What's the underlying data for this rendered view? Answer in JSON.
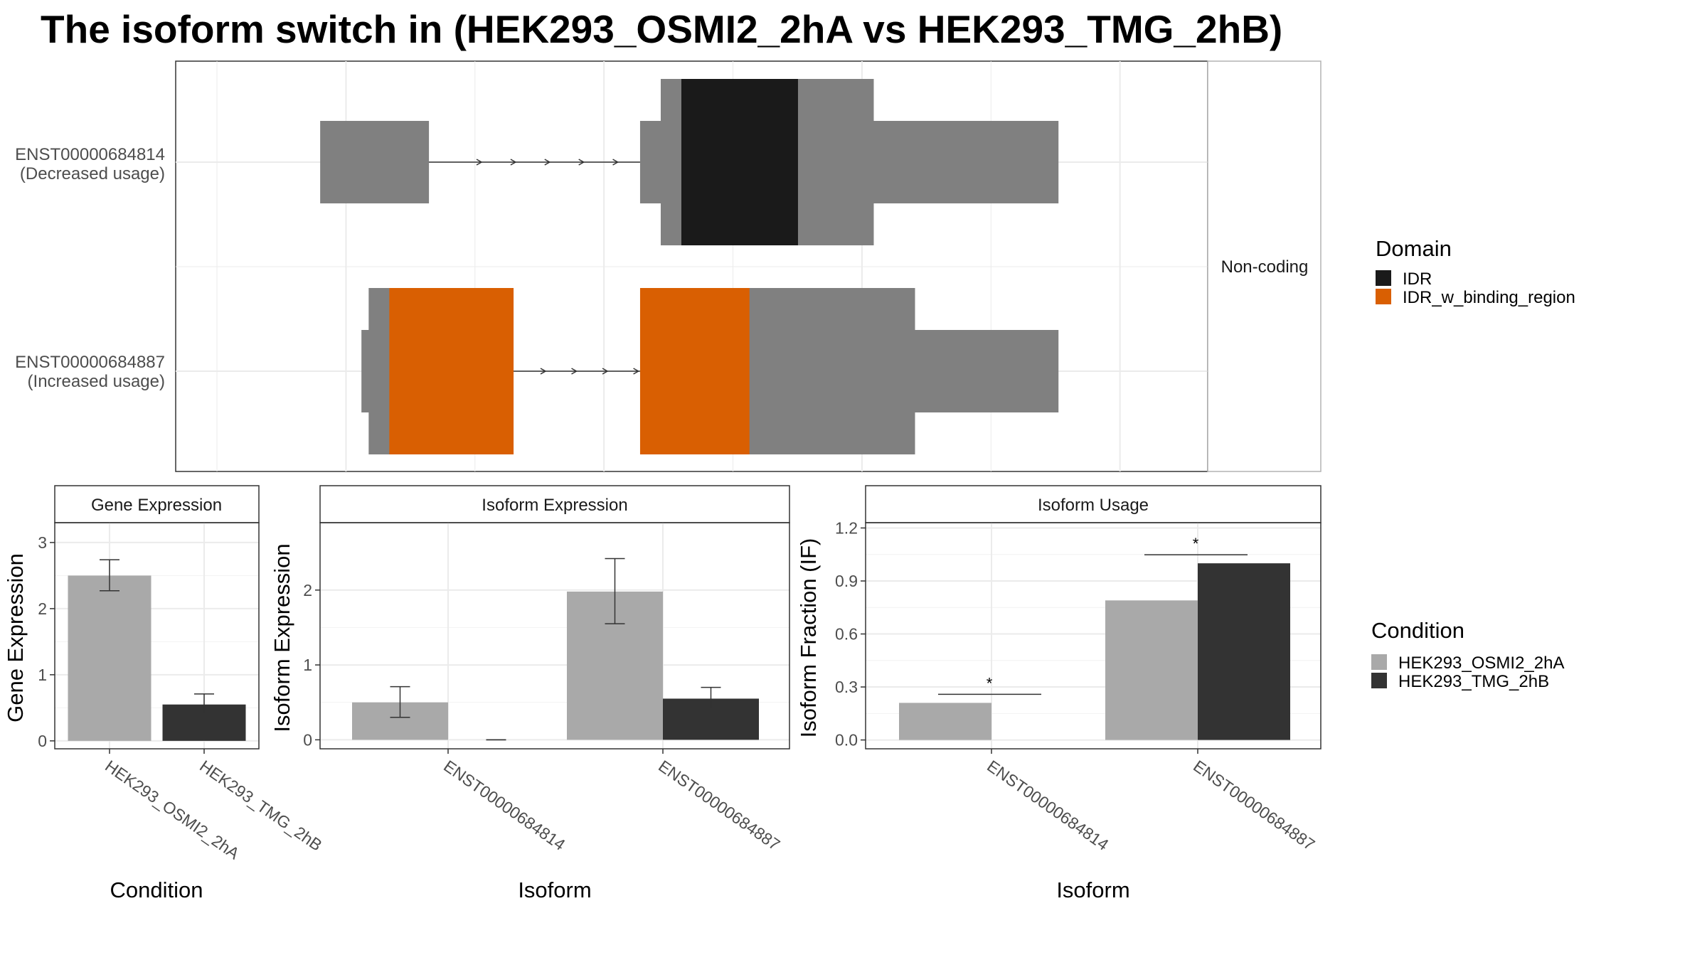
{
  "title": "The isoform switch in  (HEK293_OSMI2_2hA vs HEK293_TMG_2hB)",
  "colors": {
    "exon": "#808080",
    "IDR": "#1a1a1a",
    "IDR_w_binding_region": "#d95f02",
    "cond_A": "#a9a9a9",
    "cond_B": "#333333"
  },
  "structure_panel": {
    "strip_label": "Non-coding",
    "transcripts": [
      {
        "id": "ENST00000684814",
        "usage": "(Decreased usage)",
        "exons": [
          {
            "start": 0.14,
            "end": 0.245,
            "kind": "utr"
          },
          {
            "start": 0.45,
            "end": 0.47,
            "kind": "utr"
          },
          {
            "start": 0.47,
            "end": 0.49,
            "kind": "cds"
          },
          {
            "start": 0.49,
            "end": 0.603,
            "kind": "IDR"
          },
          {
            "start": 0.603,
            "end": 0.676,
            "kind": "cds"
          },
          {
            "start": 0.676,
            "end": 0.855,
            "kind": "utr"
          }
        ],
        "intron_arrows": [
          0.295,
          0.328,
          0.361,
          0.394,
          0.427
        ]
      },
      {
        "id": "ENST00000684887",
        "usage": "(Increased usage)",
        "exons": [
          {
            "start": 0.18,
            "end": 0.187,
            "kind": "utr"
          },
          {
            "start": 0.187,
            "end": 0.207,
            "kind": "cds"
          },
          {
            "start": 0.207,
            "end": 0.327,
            "kind": "IDR_w_binding_region"
          },
          {
            "start": 0.45,
            "end": 0.556,
            "kind": "IDR_w_binding_region"
          },
          {
            "start": 0.556,
            "end": 0.716,
            "kind": "cds"
          },
          {
            "start": 0.716,
            "end": 0.855,
            "kind": "utr"
          }
        ],
        "intron_arrows": [
          0.357,
          0.387,
          0.417,
          0.447
        ]
      }
    ]
  },
  "domain_legend": {
    "title": "Domain",
    "items": [
      {
        "label": "IDR",
        "color": "#1a1a1a"
      },
      {
        "label": "IDR_w_binding_region",
        "color": "#d95f02"
      }
    ]
  },
  "condition_legend": {
    "title": "Condition",
    "items": [
      {
        "label": "HEK293_OSMI2_2hA",
        "color": "#a9a9a9"
      },
      {
        "label": "HEK293_TMG_2hB",
        "color": "#333333"
      }
    ]
  },
  "chart_data": [
    {
      "type": "bar",
      "title": "Gene Expression",
      "xlabel": "Condition",
      "ylabel": "Gene Expression",
      "categories": [
        "HEK293_OSMI2_2hA",
        "HEK293_TMG_2hB"
      ],
      "values": [
        2.5,
        0.55
      ],
      "errors": [
        [
          2.27,
          2.74
        ],
        [
          0.42,
          0.71
        ]
      ],
      "yticks": [
        "0",
        "1",
        "2",
        "3"
      ],
      "ylim": [
        -0.12,
        3.3
      ]
    },
    {
      "type": "bar",
      "title": "Isoform Expression",
      "xlabel": "Isoform",
      "ylabel": "Isoform Expression",
      "categories": [
        "ENST00000684814",
        "ENST00000684887"
      ],
      "series": [
        {
          "name": "HEK293_OSMI2_2hA",
          "values": [
            0.5,
            1.98
          ],
          "errors": [
            [
              0.3,
              0.71
            ],
            [
              1.55,
              2.42
            ]
          ]
        },
        {
          "name": "HEK293_TMG_2hB",
          "values": [
            0.0,
            0.55
          ],
          "errors": [
            [
              0.0,
              0.0
            ],
            [
              0.41,
              0.7
            ]
          ]
        }
      ],
      "yticks": [
        "0",
        "1",
        "2"
      ],
      "ylim": [
        -0.12,
        2.9
      ]
    },
    {
      "type": "bar",
      "title": "Isoform Usage",
      "xlabel": "Isoform",
      "ylabel": "Isoform Fraction (IF)",
      "categories": [
        "ENST00000684814",
        "ENST00000684887"
      ],
      "series": [
        {
          "name": "HEK293_OSMI2_2hA",
          "values": [
            0.21,
            0.79
          ]
        },
        {
          "name": "HEK293_TMG_2hB",
          "values": [
            0.0,
            1.0
          ]
        }
      ],
      "significance": [
        "*",
        "*"
      ],
      "yticks": [
        "0.0",
        "0.3",
        "0.6",
        "0.9",
        "1.2"
      ],
      "ylim": [
        -0.05,
        1.23
      ]
    }
  ]
}
